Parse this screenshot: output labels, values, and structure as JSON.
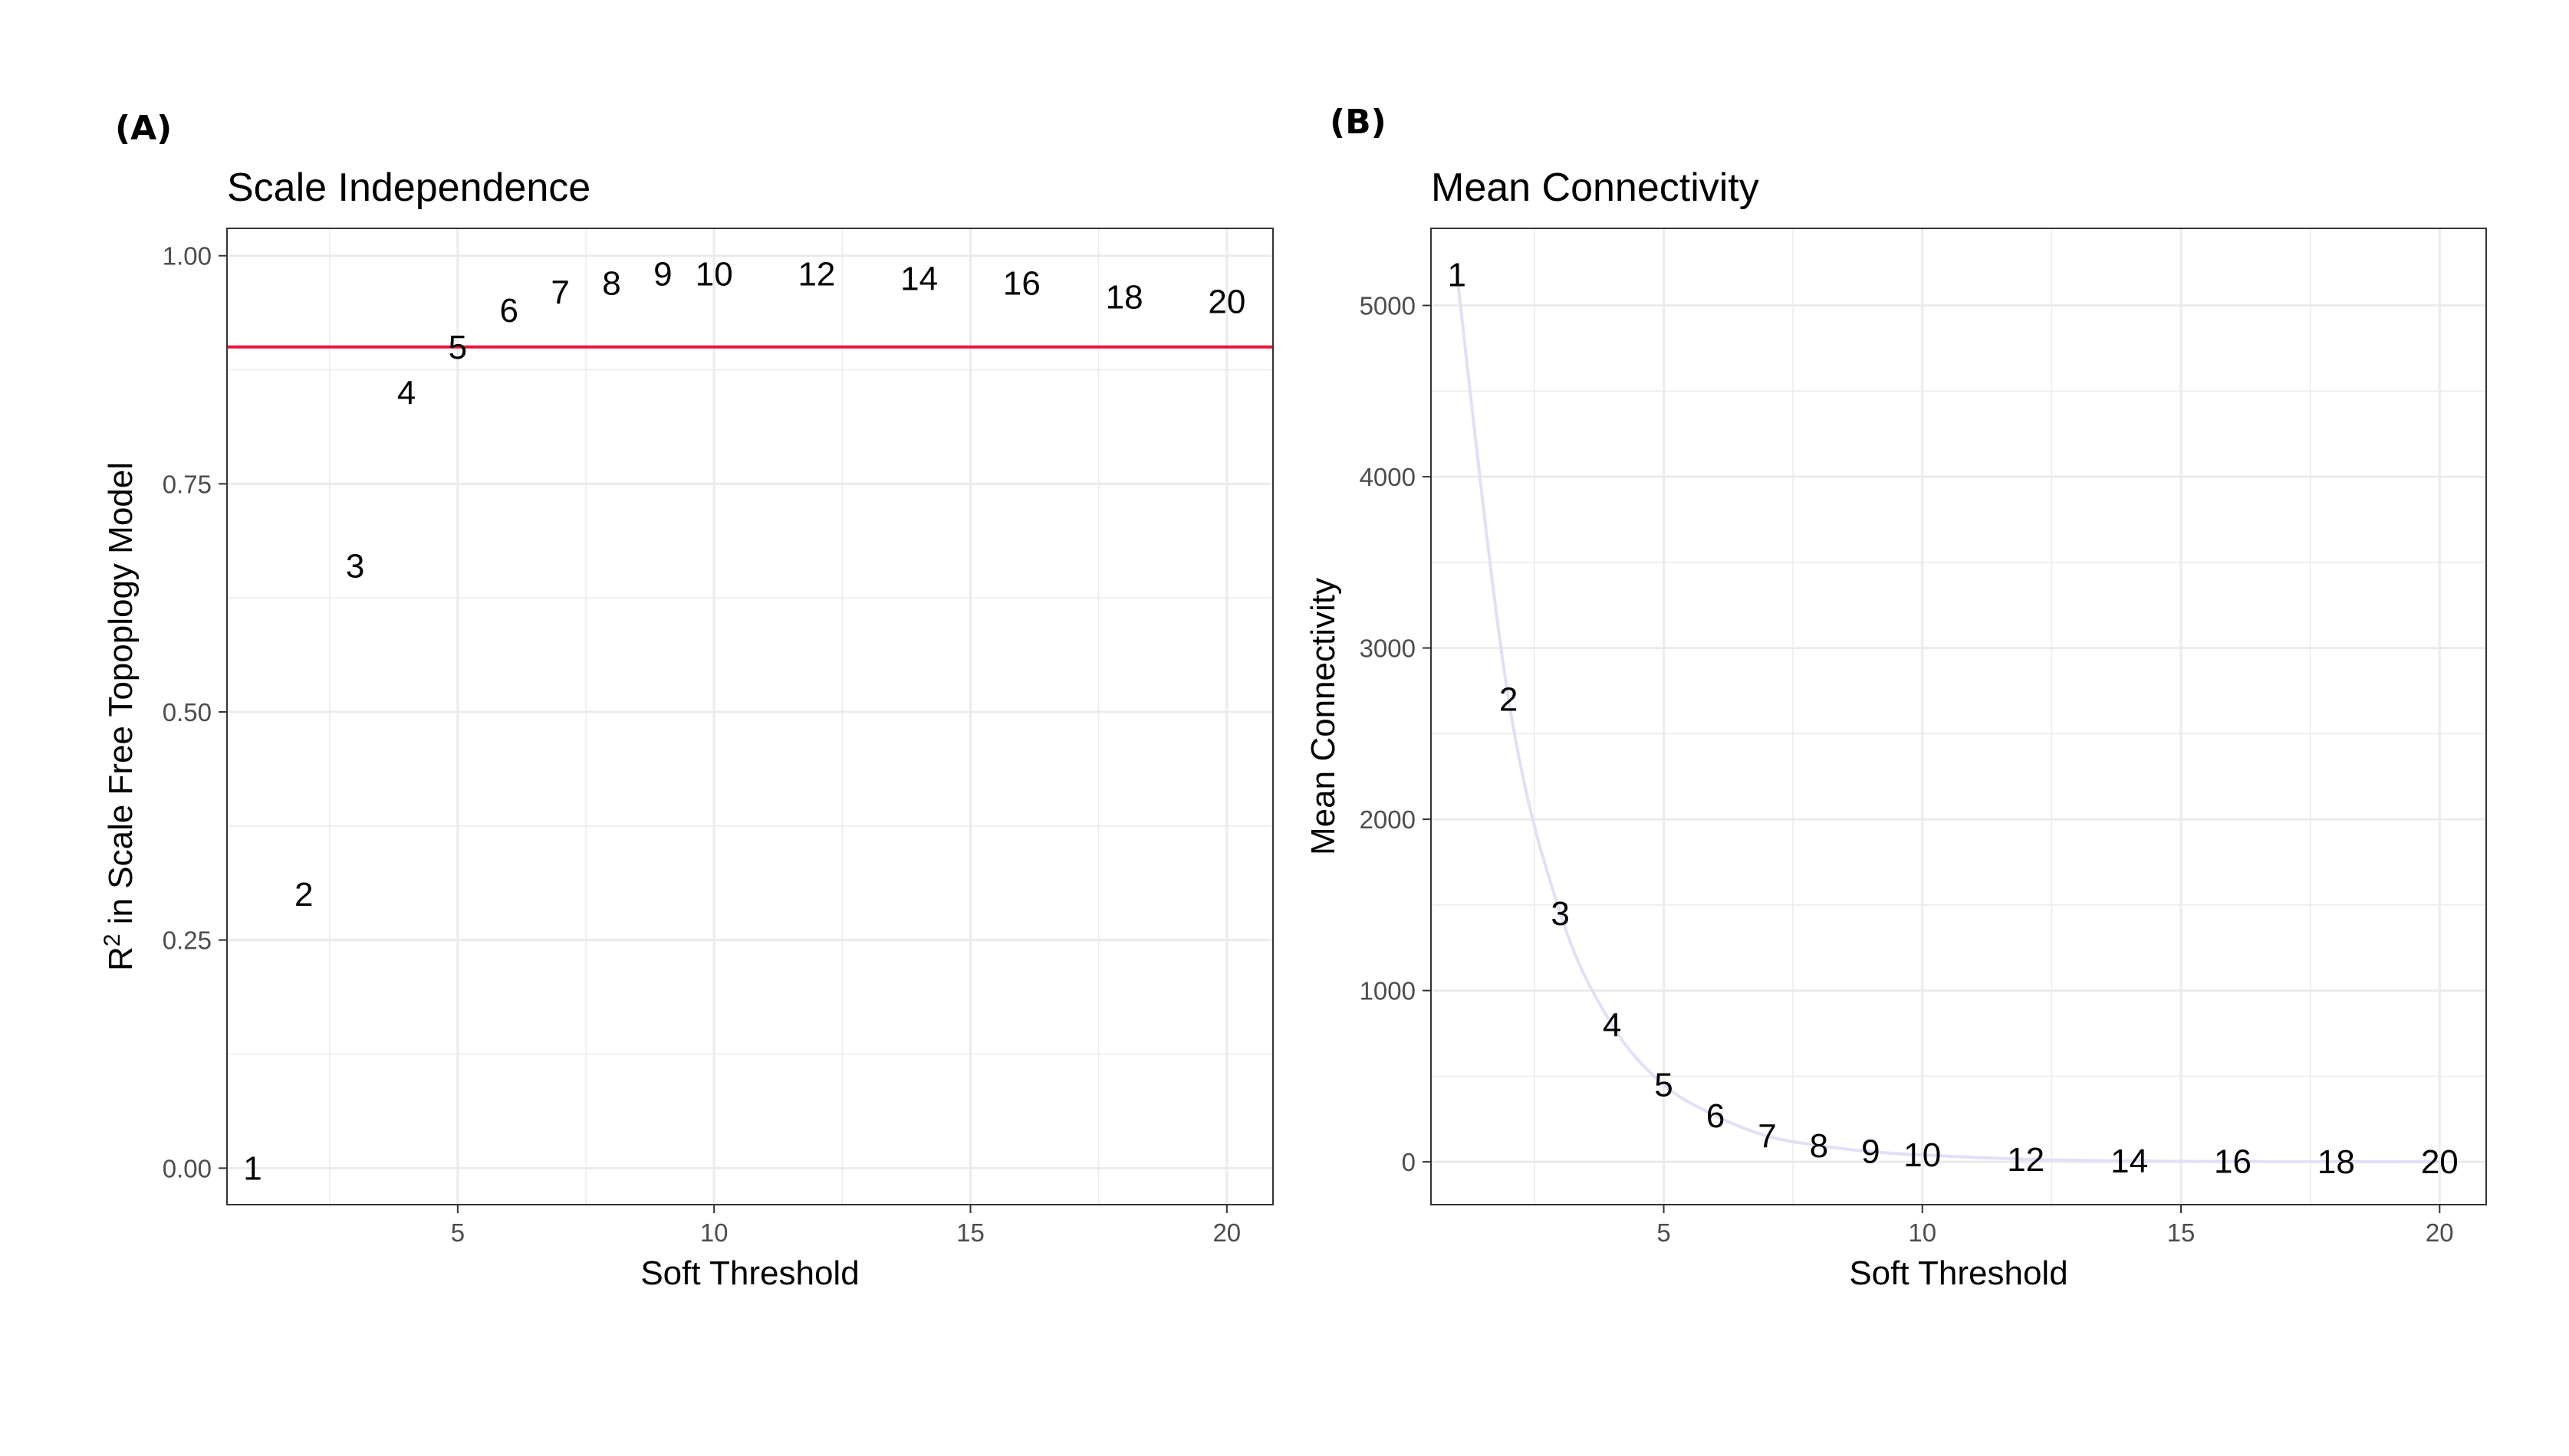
{
  "chart_data": [
    {
      "panel_tag": "(A)",
      "type": "scatter",
      "title": "Scale Independence",
      "xlabel": "Soft Threshold",
      "ylabel_main": "R",
      "ylabel_sup": "2",
      "ylabel_rest": " in Scale Free Topoplogy Model",
      "xlim": [
        0.5,
        20.9
      ],
      "ylim": [
        -0.04,
        1.03
      ],
      "x_ticks": [
        5,
        10,
        15,
        20
      ],
      "y_ticks": [
        0,
        0.25,
        0.5,
        0.75,
        1.0
      ],
      "y_tick_labels": [
        "0.00",
        "0.25",
        "0.50",
        "0.75",
        "1.00"
      ],
      "grid": true,
      "hline": {
        "y": 0.9,
        "color": "#e8173c"
      },
      "points": [
        {
          "label": "1",
          "x": 1,
          "y": 0.0
        },
        {
          "label": "2",
          "x": 2,
          "y": 0.3
        },
        {
          "label": "3",
          "x": 3,
          "y": 0.66
        },
        {
          "label": "4",
          "x": 4,
          "y": 0.85
        },
        {
          "label": "5",
          "x": 5,
          "y": 0.9
        },
        {
          "label": "6",
          "x": 6,
          "y": 0.94
        },
        {
          "label": "7",
          "x": 7,
          "y": 0.96
        },
        {
          "label": "8",
          "x": 8,
          "y": 0.97
        },
        {
          "label": "9",
          "x": 9,
          "y": 0.98
        },
        {
          "label": "10",
          "x": 10,
          "y": 0.98
        },
        {
          "label": "12",
          "x": 12,
          "y": 0.98
        },
        {
          "label": "14",
          "x": 14,
          "y": 0.975
        },
        {
          "label": "16",
          "x": 16,
          "y": 0.97
        },
        {
          "label": "18",
          "x": 18,
          "y": 0.955
        },
        {
          "label": "20",
          "x": 20,
          "y": 0.95
        }
      ]
    },
    {
      "panel_tag": "(B)",
      "type": "line",
      "title": "Mean Connectivity",
      "xlabel": "Soft Threshold",
      "ylabel": "Mean Connectivity",
      "xlim": [
        0.5,
        20.9
      ],
      "ylim": [
        -250,
        5450
      ],
      "x_ticks": [
        5,
        10,
        15,
        20
      ],
      "y_ticks": [
        0,
        1000,
        2000,
        3000,
        4000,
        5000
      ],
      "y_tick_labels": [
        "0",
        "1000",
        "2000",
        "3000",
        "4000",
        "5000"
      ],
      "grid": true,
      "line_color": "#e0e0f8",
      "points": [
        {
          "label": "1",
          "x": 1,
          "y": 5180
        },
        {
          "label": "2",
          "x": 2,
          "y": 2700
        },
        {
          "label": "3",
          "x": 3,
          "y": 1450
        },
        {
          "label": "4",
          "x": 4,
          "y": 800
        },
        {
          "label": "5",
          "x": 5,
          "y": 450
        },
        {
          "label": "6",
          "x": 6,
          "y": 270
        },
        {
          "label": "7",
          "x": 7,
          "y": 150
        },
        {
          "label": "8",
          "x": 8,
          "y": 95
        },
        {
          "label": "9",
          "x": 9,
          "y": 60
        },
        {
          "label": "10",
          "x": 10,
          "y": 40
        },
        {
          "label": "12",
          "x": 12,
          "y": 15
        },
        {
          "label": "14",
          "x": 14,
          "y": 5
        },
        {
          "label": "16",
          "x": 16,
          "y": 2
        },
        {
          "label": "18",
          "x": 18,
          "y": 1
        },
        {
          "label": "20",
          "x": 20,
          "y": 0
        }
      ]
    }
  ]
}
